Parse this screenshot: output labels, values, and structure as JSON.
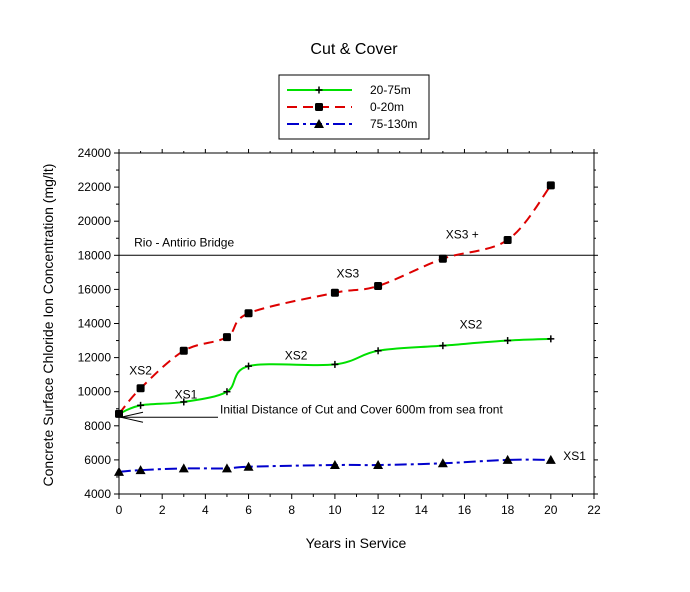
{
  "chart_data": {
    "type": "line",
    "title": "Cut & Cover",
    "xlabel": "Years in Service",
    "ylabel": "Concrete Surface Chloride Ion Concentration (mg/lt)",
    "xlim": [
      0,
      22
    ],
    "ylim": [
      4000,
      24000
    ],
    "xticks": [
      0,
      2,
      4,
      6,
      8,
      10,
      12,
      14,
      16,
      18,
      20,
      22
    ],
    "yticks": [
      4000,
      6000,
      8000,
      10000,
      12000,
      14000,
      16000,
      18000,
      20000,
      22000,
      24000
    ],
    "legend_position": "top-center",
    "series": [
      {
        "name": "20-75m",
        "color": "#00e000",
        "dash": "solid",
        "marker": "plus",
        "x": [
          0,
          1,
          3,
          5,
          6,
          10,
          12,
          15,
          18,
          20
        ],
        "values": [
          8700,
          9200,
          9400,
          10000,
          11500,
          11600,
          12400,
          12700,
          13000,
          13100
        ]
      },
      {
        "name": "0-20m",
        "color": "#dd0000",
        "dash": "dashed",
        "marker": "square",
        "x": [
          0,
          1,
          3,
          5,
          6,
          10,
          12,
          15,
          18,
          20
        ],
        "values": [
          8700,
          10200,
          12400,
          13200,
          14600,
          15800,
          16200,
          17800,
          18900,
          22100
        ]
      },
      {
        "name": "75-130m",
        "color": "#0000cc",
        "dash": "dashdot",
        "marker": "triangle",
        "x": [
          0,
          1,
          3,
          5,
          6,
          10,
          12,
          15,
          18,
          20
        ],
        "values": [
          5300,
          5400,
          5500,
          5500,
          5600,
          5700,
          5700,
          5800,
          6000,
          6000
        ]
      }
    ],
    "reference_line": {
      "y": 18000,
      "label": "Rio - Antirio Bridge"
    },
    "annotations": [
      {
        "text": "XS2",
        "x": 1,
        "y": 11000
      },
      {
        "text": "XS1",
        "x": 3.1,
        "y": 9600
      },
      {
        "text": "XS2",
        "x": 8.2,
        "y": 11900
      },
      {
        "text": "XS3",
        "x": 10.6,
        "y": 16700
      },
      {
        "text": "XS3 +",
        "x": 15.9,
        "y": 19000
      },
      {
        "text": "XS2",
        "x": 16.3,
        "y": 13700
      },
      {
        "text": "XS1",
        "x": 21.1,
        "y": 6000
      }
    ],
    "arrow_note": {
      "text": "Initial Distance of Cut and Cover 600m from sea front",
      "x": 0,
      "y": 8500
    }
  }
}
